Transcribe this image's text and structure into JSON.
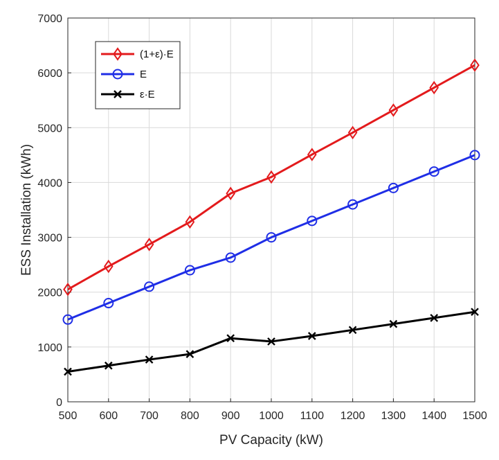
{
  "chart_data": {
    "type": "line",
    "title": "",
    "xlabel": "PV Capacity (kW)",
    "ylabel": "ESS Installation (kWh)",
    "x": [
      500,
      600,
      700,
      800,
      900,
      1000,
      1100,
      1200,
      1300,
      1400,
      1500
    ],
    "xlim": [
      500,
      1500
    ],
    "ylim": [
      0,
      7000
    ],
    "xticks": [
      "500",
      "600",
      "700",
      "800",
      "900",
      "1000",
      "1100",
      "1200",
      "1300",
      "1400",
      "1500"
    ],
    "yticks": [
      "0",
      "1000",
      "2000",
      "3000",
      "4000",
      "5000",
      "6000",
      "7000"
    ],
    "grid": true,
    "legend_position": "top-left",
    "series": [
      {
        "name": "(1+ε)·E",
        "color": "#e31a1c",
        "marker": "diamond",
        "values": [
          2050,
          2470,
          2870,
          3280,
          3800,
          4100,
          4510,
          4910,
          5320,
          5730,
          6140
        ]
      },
      {
        "name": "E",
        "color": "#1f2ee6",
        "marker": "circle",
        "values": [
          1500,
          1800,
          2100,
          2400,
          2630,
          3000,
          3300,
          3600,
          3900,
          4200,
          4500
        ]
      },
      {
        "name": "ε·E",
        "color": "#000000",
        "marker": "x",
        "values": [
          550,
          660,
          770,
          870,
          1160,
          1100,
          1200,
          1310,
          1420,
          1530,
          1640
        ]
      }
    ]
  }
}
